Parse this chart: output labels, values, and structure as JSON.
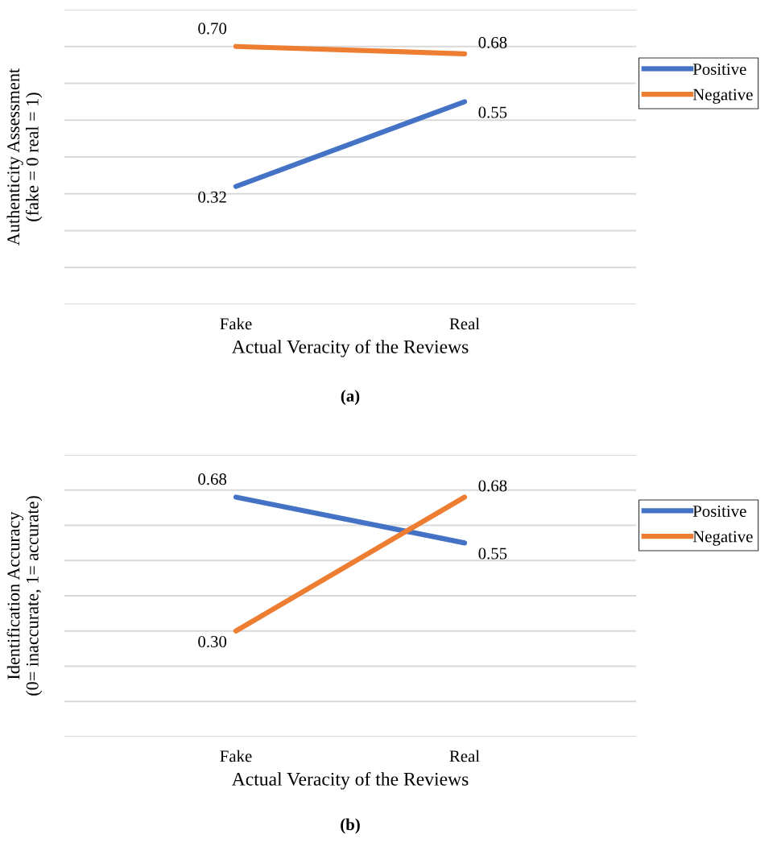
{
  "chart_data": [
    {
      "type": "line",
      "title": "(a)",
      "xlabel": "Actual Veracity of the Reviews",
      "ylabel": "Authenticity Assessment\n(fake = 0 real = 1)",
      "categories": [
        "Fake",
        "Real"
      ],
      "series": [
        {
          "name": "Positive",
          "color": "#4472c4",
          "values": [
            0.32,
            0.55
          ],
          "value_labels": [
            "0.32",
            "0.55"
          ]
        },
        {
          "name": "Negative",
          "color": "#ed7d31",
          "values": [
            0.7,
            0.68
          ],
          "value_labels": [
            "0.70",
            "0.68"
          ]
        }
      ],
      "ylim": [
        0,
        0.8
      ],
      "yticks": [
        {
          "value": 0,
          "label": null
        },
        {
          "value": 0.1,
          "label": null
        },
        {
          "value": 0.2,
          "label": null
        },
        {
          "value": 0.3,
          "label": null
        },
        {
          "value": 0.4,
          "label": null
        },
        {
          "value": 0.5,
          "label": null
        },
        {
          "value": 0.6,
          "label": null
        },
        {
          "value": 0.7,
          "label": null
        },
        {
          "value": 0.8,
          "label": null
        }
      ],
      "grid": "y",
      "legend": "right",
      "marker": "none",
      "line_style": "solid"
    },
    {
      "type": "line",
      "title": "(b)",
      "xlabel": "Actual Veracity of the Reviews",
      "ylabel": "Identification Accuracy\n(0= inaccurate, 1= accurate)",
      "categories": [
        "Fake",
        "Real"
      ],
      "series": [
        {
          "name": "Positive",
          "color": "#4472c4",
          "values": [
            0.68,
            0.55
          ],
          "value_labels": [
            "0.68",
            "0.55"
          ]
        },
        {
          "name": "Negative",
          "color": "#ed7d31",
          "values": [
            0.3,
            0.68
          ],
          "value_labels": [
            "0.30",
            "0.68"
          ]
        }
      ],
      "ylim": [
        0,
        0.8
      ],
      "yticks": [
        {
          "value": 0,
          "label": null
        },
        {
          "value": 0.1,
          "label": null
        },
        {
          "value": 0.2,
          "label": null
        },
        {
          "value": 0.3,
          "label": null
        },
        {
          "value": 0.4,
          "label": null
        },
        {
          "value": 0.5,
          "label": null
        },
        {
          "value": 0.6,
          "label": null
        },
        {
          "value": 0.7,
          "label": null
        },
        {
          "value": 0.8,
          "label": null
        }
      ],
      "grid": "y",
      "legend": "right",
      "marker": "none",
      "line_style": "solid"
    }
  ]
}
